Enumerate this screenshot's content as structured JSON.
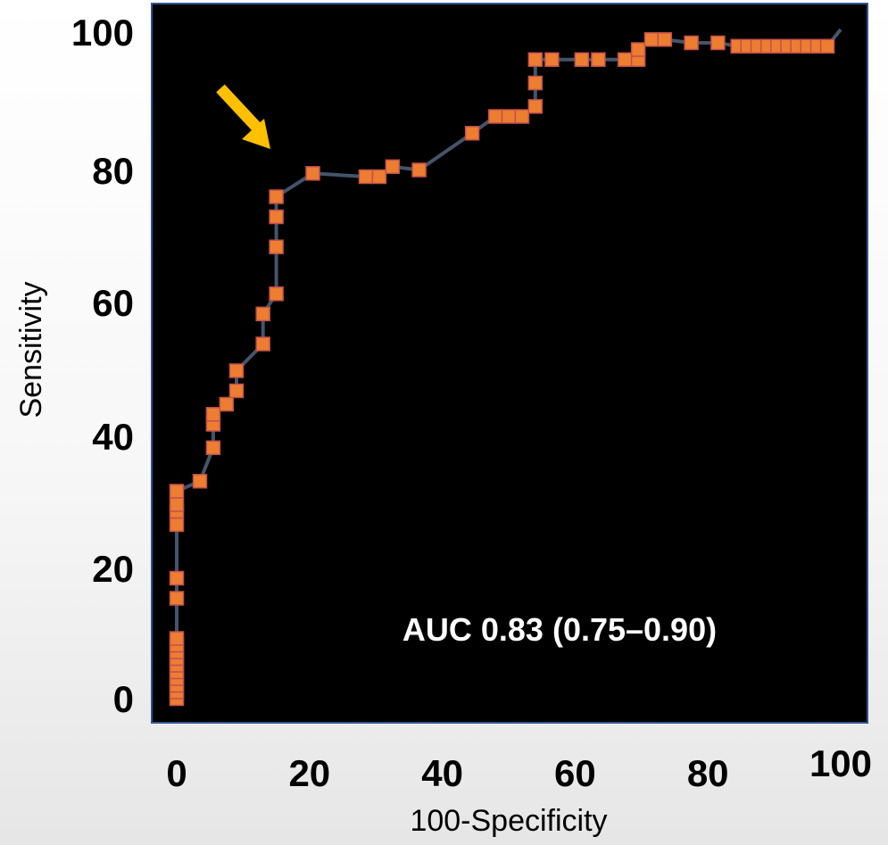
{
  "chart_data": {
    "type": "line",
    "xlabel": "100-Specificity",
    "ylabel": "Sensitivity",
    "xlim": [
      0,
      100
    ],
    "ylim": [
      0,
      100
    ],
    "x_ticks": [
      "0",
      "20",
      "40",
      "60",
      "80",
      "100"
    ],
    "y_ticks": [
      "0",
      "20",
      "40",
      "60",
      "80",
      "100"
    ],
    "annotation": "AUC 0.83 (0.75–0.90)",
    "grid": false,
    "colors": {
      "plot_background": "#000000",
      "plot_border": "#2f5597",
      "line": "#44546a",
      "marker_fill": "#ed7d31",
      "marker_stroke": "#c0504d",
      "arrow": "#ffc000"
    },
    "series": [
      {
        "points": [
          [
            0,
            0
          ],
          [
            0,
            1
          ],
          [
            0,
            2
          ],
          [
            0,
            3
          ],
          [
            0,
            4
          ],
          [
            0,
            5
          ],
          [
            0,
            6
          ],
          [
            0,
            7
          ],
          [
            0,
            8
          ],
          [
            0,
            9
          ],
          [
            0,
            15
          ],
          [
            0,
            18
          ],
          [
            0,
            26
          ],
          [
            0,
            28
          ],
          [
            0,
            29
          ],
          [
            0,
            31
          ],
          [
            3.5,
            32.5
          ],
          [
            5.5,
            37.5
          ],
          [
            5.5,
            41
          ],
          [
            5.5,
            42.5
          ],
          [
            7.5,
            44
          ],
          [
            9,
            46
          ],
          [
            9,
            49
          ],
          [
            13,
            53
          ],
          [
            13,
            57.5
          ],
          [
            15,
            60.5
          ],
          [
            15,
            67.5
          ],
          [
            15,
            72
          ],
          [
            15,
            75
          ],
          [
            20.5,
            78.5
          ],
          [
            28.5,
            78
          ],
          [
            30.5,
            78
          ],
          [
            32.5,
            79.5
          ],
          [
            36.5,
            79
          ],
          [
            44.5,
            84.5
          ],
          [
            48,
            87
          ],
          [
            50,
            87
          ],
          [
            52,
            87
          ],
          [
            54,
            88.5
          ],
          [
            54,
            92
          ],
          [
            54,
            95.5
          ],
          [
            56.5,
            95.5
          ],
          [
            61,
            95.5
          ],
          [
            63.5,
            95.5
          ],
          [
            67.5,
            95.5
          ],
          [
            69.5,
            95.5
          ],
          [
            69.5,
            97
          ],
          [
            71.5,
            98.5
          ],
          [
            73.5,
            98.5
          ],
          [
            77.5,
            98
          ],
          [
            81.5,
            98
          ],
          [
            84.5,
            97.5
          ],
          [
            86,
            97.5
          ],
          [
            87.5,
            97.5
          ],
          [
            89,
            97.5
          ],
          [
            90.5,
            97.5
          ],
          [
            92,
            97.5
          ],
          [
            93.5,
            97.5
          ],
          [
            95,
            97.5
          ],
          [
            96.5,
            97.5
          ],
          [
            98,
            97.5
          ],
          [
            100,
            100
          ]
        ]
      }
    ]
  }
}
